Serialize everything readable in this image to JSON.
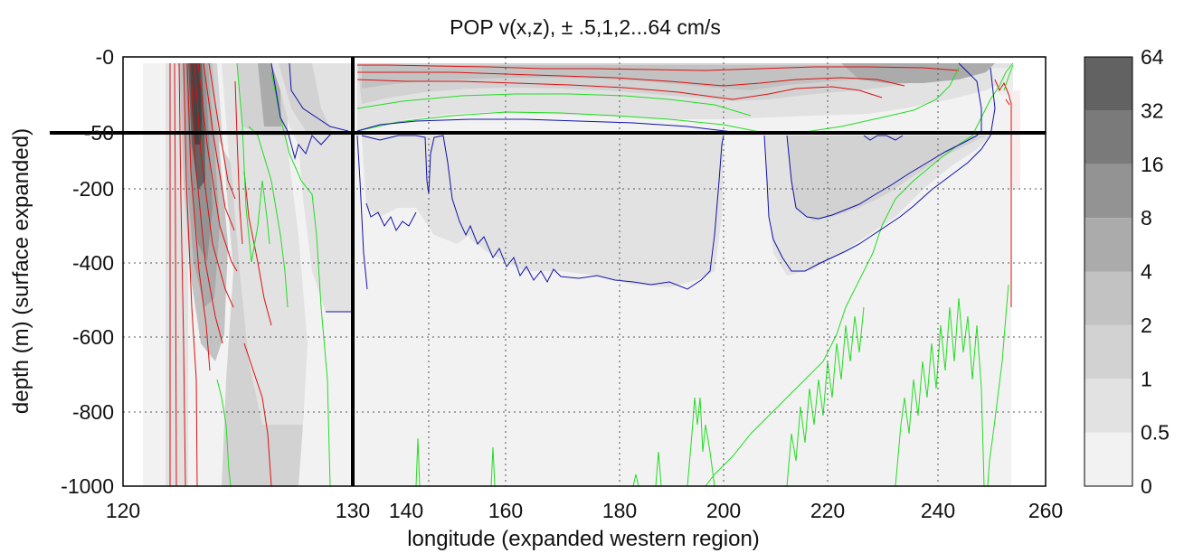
{
  "chart_data": {
    "type": "heatmap",
    "title": "POP v(x,z), ± .5,1,2...64 cm/s",
    "xlabel": "longitude (expanded western region)",
    "ylabel": "depth (m) (surface expanded)",
    "x_ticks": [
      "120",
      "130",
      "140",
      "160",
      "180",
      "200",
      "220",
      "240",
      "260"
    ],
    "y_ticks": [
      "-0",
      "-50",
      "-200",
      "-400",
      "-600",
      "-800",
      "-1000"
    ],
    "xlim": [
      120,
      260
    ],
    "ylim": [
      -1000,
      0
    ],
    "grid": true,
    "scale_breaks": {
      "x": 130,
      "y": -50
    },
    "colorbar": {
      "levels": [
        "0",
        "0.5",
        "1",
        "2",
        "4",
        "8",
        "16",
        "32",
        "64"
      ],
      "colors": [
        "#f2f2f2",
        "#e2e2e2",
        "#d2d2d2",
        "#c2c2c2",
        "#ababab",
        "#939393",
        "#7a7a7a",
        "#626262",
        "#444444"
      ]
    },
    "contour_colors": {
      "negative": "#dd1111",
      "zero": "#22dd22",
      "positive": "#1111aa"
    }
  }
}
